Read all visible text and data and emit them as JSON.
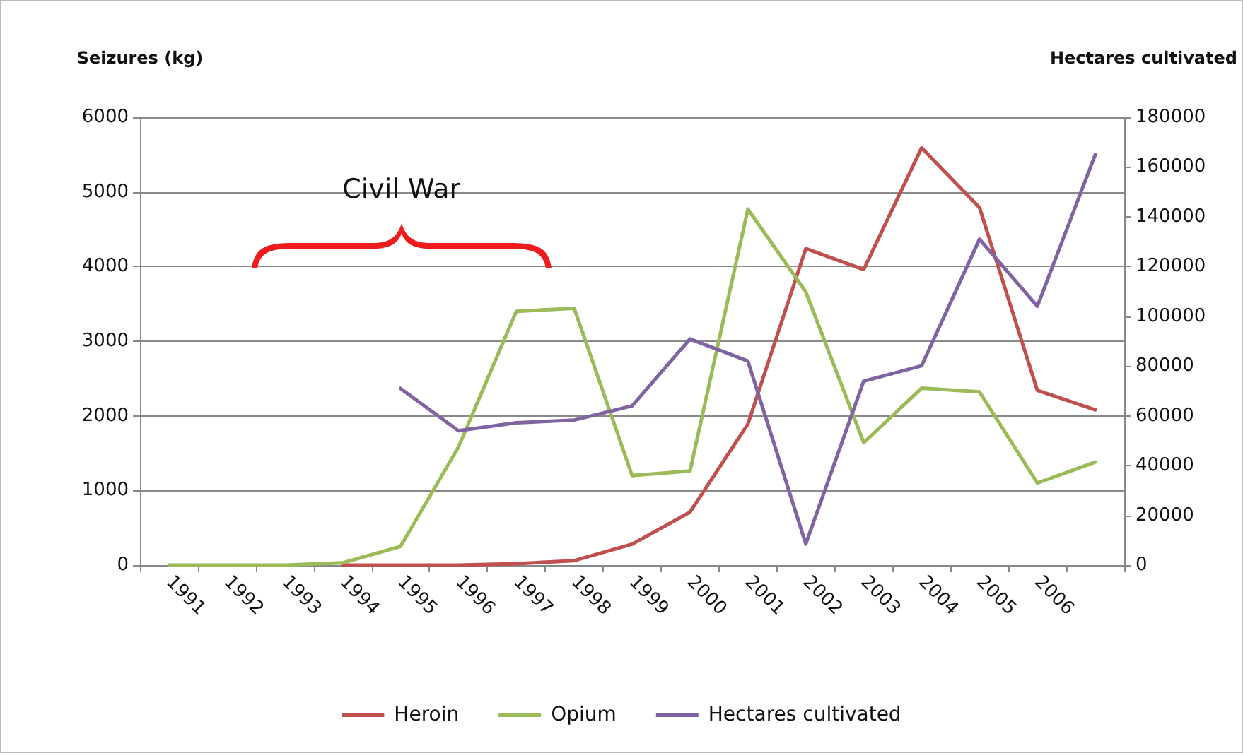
{
  "chart_data": {
    "type": "line",
    "ylabel": "Seizures (kg)",
    "y2label": "Hectares cultivated",
    "categories": [
      "1991",
      "1992",
      "1993",
      "1994",
      "1995",
      "1996",
      "1997",
      "1998",
      "1999",
      "2000",
      "2001",
      "2002",
      "2003",
      "2004",
      "2005",
      "2006",
      null
    ],
    "series": [
      {
        "name": "Heroin",
        "color": "#c0504d",
        "values": [
          null,
          null,
          null,
          0,
          0,
          0,
          20,
          60,
          280,
          710,
          1890,
          4240,
          3960,
          5590,
          4790,
          2340,
          2080
        ]
      },
      {
        "name": "Opium",
        "color": "#9bbb59",
        "values": [
          0,
          0,
          0,
          30,
          250,
          1580,
          3400,
          3440,
          1200,
          1260,
          4770,
          3660,
          1640,
          2370,
          2320,
          1100,
          1380
        ]
      },
      {
        "name": "Hectares cultivated",
        "color": "#8064a2",
        "axis": "y2",
        "values": [
          null,
          null,
          null,
          null,
          71000,
          54000,
          57200,
          58300,
          64000,
          90900,
          82000,
          8500,
          73900,
          80100,
          131000,
          104000,
          165000
        ]
      }
    ],
    "ylim": [
      0,
      6000
    ],
    "yticks": [
      0,
      1000,
      2000,
      3000,
      4000,
      5000,
      6000
    ],
    "y2lim": [
      0,
      180000
    ],
    "y2ticks": [
      0,
      20000,
      40000,
      60000,
      80000,
      100000,
      120000,
      140000,
      160000,
      180000
    ],
    "annotations": [
      "Civil War"
    ],
    "grid": "y",
    "legend": "bottom",
    "marker": "none",
    "line_style": "solid"
  }
}
